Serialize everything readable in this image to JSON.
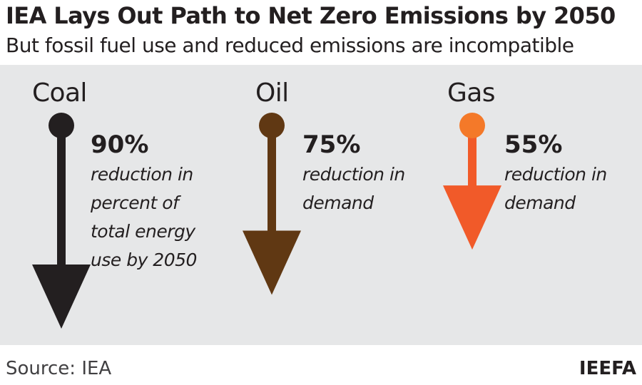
{
  "title": "IEA Lays Out Path to Net Zero Emissions by 2050",
  "subtitle": "But fossil fuel use and reduced emissions are incompatible",
  "source": "Source: IEA",
  "brand": "IEEFA",
  "chart_data": {
    "type": "infographic",
    "title": "IEA Lays Out Path to Net Zero Emissions by 2050",
    "subtitle": "But fossil fuel use and reduced emissions are incompatible",
    "unit": "%",
    "items": [
      {
        "name": "Coal",
        "value": 90,
        "value_label": "90%",
        "description_lines": [
          "reduction in",
          "percent of",
          "total energy",
          "use by 2050"
        ],
        "color": "#231f20"
      },
      {
        "name": "Oil",
        "value": 75,
        "value_label": "75%",
        "description_lines": [
          "reduction in",
          "demand"
        ],
        "color": "#603813"
      },
      {
        "name": "Gas",
        "value": 55,
        "value_label": "55%",
        "description_lines": [
          "reduction in",
          "demand"
        ],
        "color": "#f15a29",
        "dot_color": "#f47929"
      }
    ]
  }
}
